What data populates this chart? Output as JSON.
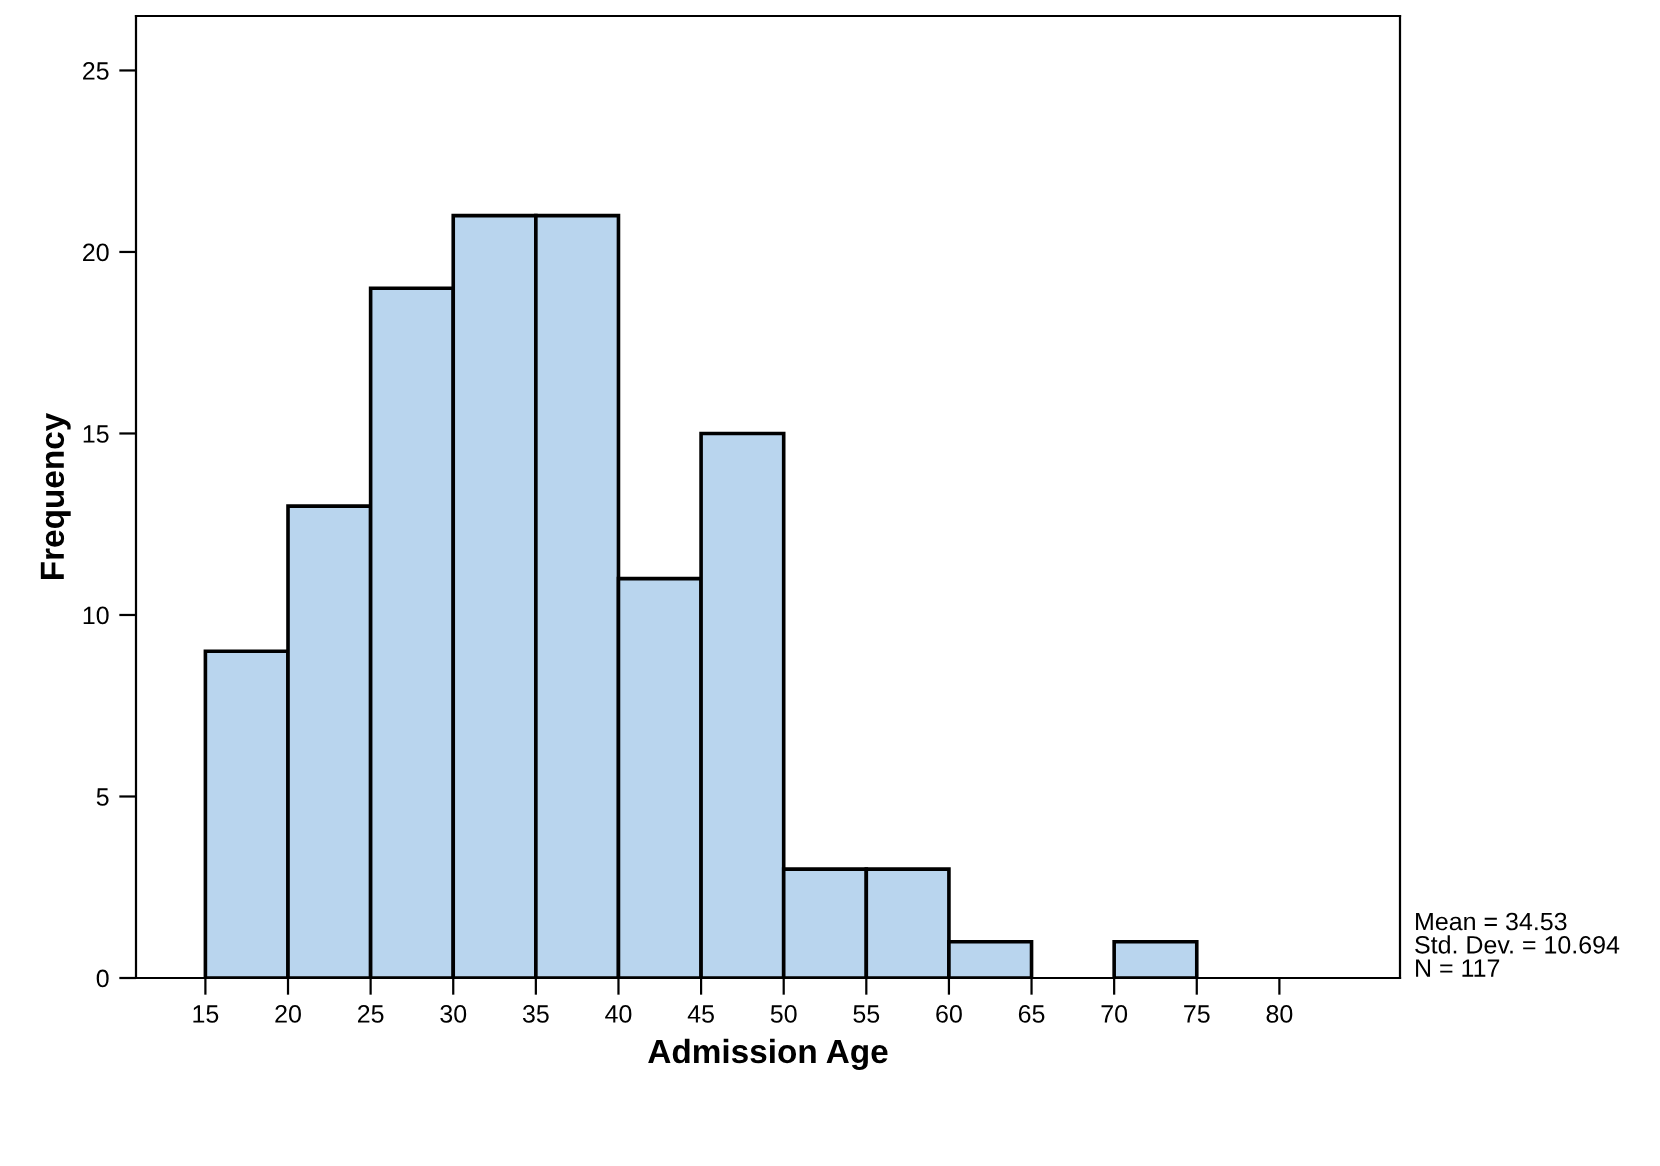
{
  "chart_data": {
    "type": "histogram",
    "xlabel": "Admission Age",
    "ylabel": "Frequency",
    "bins": [
      15,
      20,
      25,
      30,
      35,
      40,
      45,
      50,
      55,
      60,
      65,
      70,
      75,
      80
    ],
    "values": [
      9,
      13,
      19,
      21,
      21,
      11,
      15,
      3,
      3,
      1,
      0,
      1,
      0
    ],
    "color": "#b9d5ee",
    "xlim": [
      10.8,
      87.3
    ],
    "ylim": [
      0,
      26.5
    ],
    "xticks": [
      15,
      20,
      25,
      30,
      35,
      40,
      45,
      50,
      55,
      60,
      65,
      70,
      75,
      80
    ],
    "yticks": [
      0,
      5,
      10,
      15,
      20,
      25
    ],
    "grid": false,
    "annotations": [
      "Mean = 34.53\nStd. Dev. = 10.694\nN = 117"
    ]
  }
}
